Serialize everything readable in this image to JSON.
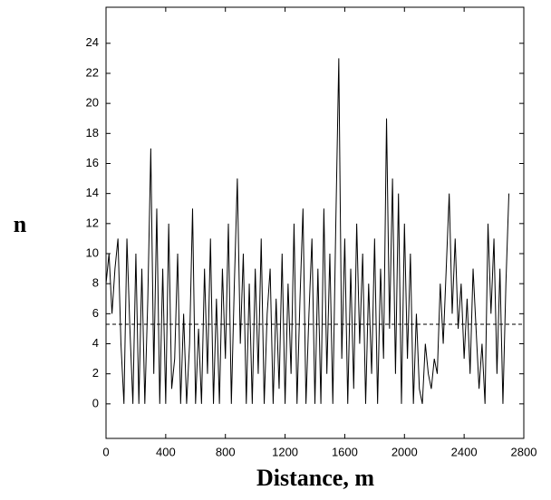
{
  "chart_data": {
    "type": "line",
    "x_label": "Distance, m",
    "y_label": "n",
    "x": [
      0,
      20,
      40,
      60,
      80,
      100,
      120,
      140,
      160,
      180,
      200,
      220,
      240,
      260,
      280,
      300,
      320,
      340,
      360,
      380,
      400,
      420,
      440,
      460,
      480,
      500,
      520,
      540,
      560,
      580,
      600,
      620,
      640,
      660,
      680,
      700,
      720,
      740,
      760,
      780,
      800,
      820,
      840,
      860,
      880,
      900,
      920,
      940,
      960,
      980,
      1000,
      1020,
      1040,
      1060,
      1080,
      1100,
      1120,
      1140,
      1160,
      1180,
      1200,
      1220,
      1240,
      1260,
      1280,
      1300,
      1320,
      1340,
      1360,
      1380,
      1400,
      1420,
      1440,
      1460,
      1480,
      1500,
      1520,
      1540,
      1560,
      1580,
      1600,
      1620,
      1640,
      1660,
      1680,
      1700,
      1720,
      1740,
      1760,
      1780,
      1800,
      1820,
      1840,
      1860,
      1880,
      1900,
      1920,
      1940,
      1960,
      1980,
      2000,
      2020,
      2040,
      2060,
      2080,
      2100,
      2120,
      2140,
      2160,
      2180,
      2200,
      2220,
      2240,
      2260,
      2280,
      2300,
      2320,
      2340,
      2360,
      2380,
      2400,
      2420,
      2440,
      2460,
      2480,
      2500,
      2520,
      2540,
      2560,
      2580,
      2600,
      2620,
      2640,
      2660,
      2680,
      2700
    ],
    "series": [
      {
        "color": "#000000",
        "values": [
          8,
          10,
          6,
          9,
          11,
          4,
          0,
          11,
          5,
          0,
          10,
          0,
          9,
          0,
          7,
          17,
          2,
          13,
          0,
          9,
          0,
          12,
          1,
          3,
          10,
          0,
          6,
          0,
          4,
          13,
          0,
          5,
          0,
          9,
          2,
          11,
          0,
          7,
          0,
          9,
          3,
          12,
          0,
          8,
          15,
          4,
          10,
          0,
          8,
          0,
          9,
          2,
          11,
          0,
          6,
          9,
          0,
          7,
          1,
          10,
          0,
          8,
          2,
          12,
          0,
          7,
          13,
          0,
          6,
          11,
          0,
          9,
          0,
          13,
          2,
          10,
          0,
          12,
          23,
          3,
          11,
          0,
          9,
          1,
          12,
          4,
          10,
          0,
          8,
          2,
          11,
          0,
          9,
          3,
          19,
          5,
          15,
          2,
          14,
          0,
          12,
          3,
          10,
          0,
          6,
          1,
          0,
          4,
          2,
          1,
          3,
          2,
          8,
          4,
          9,
          14,
          6,
          11,
          5,
          8,
          3,
          7,
          2,
          9,
          5,
          1,
          4,
          0,
          12,
          6,
          11,
          2,
          9,
          0,
          8,
          14
        ]
      }
    ],
    "hline": {
      "value": 5.3,
      "style": "dashed"
    },
    "xlim": [
      0,
      2800
    ],
    "xticks": [
      0,
      400,
      800,
      1200,
      1600,
      2000,
      2400,
      2800
    ],
    "ylim": [
      -2.3,
      26.4
    ],
    "yticks": [
      0,
      2,
      4,
      6,
      8,
      10,
      12,
      14,
      16,
      18,
      20,
      22,
      24
    ]
  }
}
